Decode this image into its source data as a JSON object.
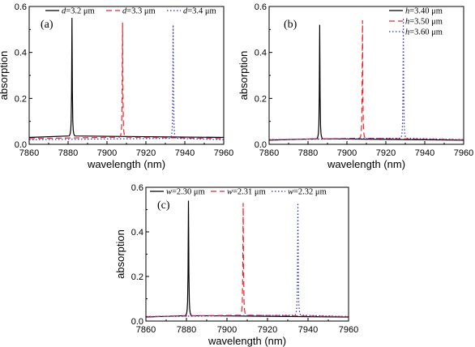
{
  "chart_data": [
    {
      "type": "line",
      "panel_label": "(a)",
      "xlabel": "wavelength (nm)",
      "ylabel": "absorption",
      "xlim": [
        7860,
        7960
      ],
      "ylim": [
        0,
        0.6
      ],
      "xticks": [
        "7860",
        "7880",
        "7900",
        "7920",
        "7940",
        "7960"
      ],
      "yticks": [
        "0.0",
        "0.2",
        "0.4",
        "0.6"
      ],
      "legend_position": "top",
      "series": [
        {
          "var": "d",
          "label": "=3.2 μm",
          "color": "#000000",
          "style": "solid",
          "baseline": 0.03,
          "peak_x": 7882,
          "peak_y": 0.55
        },
        {
          "var": "d",
          "label": "=3.3 μm",
          "color": "#e8262a",
          "style": "dashed",
          "baseline": 0.025,
          "peak_x": 7908,
          "peak_y": 0.53
        },
        {
          "var": "d",
          "label": "=3.4 μm",
          "color": "#2b2bd6",
          "style": "dotted",
          "baseline": 0.02,
          "peak_x": 7934,
          "peak_y": 0.52
        }
      ]
    },
    {
      "type": "line",
      "panel_label": "(b)",
      "xlabel": "wavelength (nm)",
      "ylabel": "absorption",
      "xlim": [
        7860,
        7960
      ],
      "ylim": [
        0,
        0.6
      ],
      "xticks": [
        "7860",
        "7880",
        "7900",
        "7920",
        "7940",
        "7960"
      ],
      "yticks": [
        "0.0",
        "0.2",
        "0.4",
        "0.6"
      ],
      "legend_position": "top-right",
      "series": [
        {
          "var": "h",
          "label": "=3.40 μm",
          "color": "#000000",
          "style": "solid",
          "baseline": 0.018,
          "peak_x": 7886,
          "peak_y": 0.52
        },
        {
          "var": "h",
          "label": "=3.50 μm",
          "color": "#e8262a",
          "style": "dashed",
          "baseline": 0.02,
          "peak_x": 7908,
          "peak_y": 0.54
        },
        {
          "var": "h",
          "label": "=3.60 μm",
          "color": "#2b2bd6",
          "style": "dotted",
          "baseline": 0.02,
          "peak_x": 7929,
          "peak_y": 0.55
        }
      ]
    },
    {
      "type": "line",
      "panel_label": "(c)",
      "xlabel": "wavelength (nm)",
      "ylabel": "absorption",
      "xlim": [
        7860,
        7960
      ],
      "ylim": [
        0,
        0.6
      ],
      "xticks": [
        "7860",
        "7880",
        "7900",
        "7920",
        "7940",
        "7960"
      ],
      "yticks": [
        "0.0",
        "0.2",
        "0.4",
        "0.6"
      ],
      "legend_position": "top",
      "series": [
        {
          "var": "w",
          "label": "=2.30 μm",
          "color": "#000000",
          "style": "solid",
          "baseline": 0.018,
          "peak_x": 7881,
          "peak_y": 0.54
        },
        {
          "var": "w",
          "label": "=2.31 μm",
          "color": "#e8262a",
          "style": "dashed",
          "baseline": 0.02,
          "peak_x": 7908,
          "peak_y": 0.53
        },
        {
          "var": "w",
          "label": "=2.32 μm",
          "color": "#2b2bd6",
          "style": "dotted",
          "baseline": 0.02,
          "peak_x": 7935,
          "peak_y": 0.53
        }
      ]
    }
  ]
}
